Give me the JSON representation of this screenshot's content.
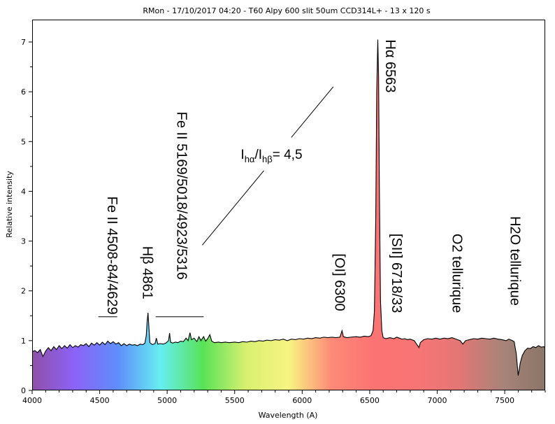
{
  "chart_data": {
    "type": "line",
    "title": "RMon - 17/10/2017 04:20 - T60 Alpy 600 slit 50um CCD314L+ - 13 x 120 s",
    "xlabel": "Wavelength (A)",
    "ylabel": "Relative intensity",
    "xlim": [
      4000,
      7800
    ],
    "ylim": [
      0,
      7.45
    ],
    "x_ticks": [
      4000,
      4500,
      5000,
      5500,
      6000,
      6500,
      7000,
      7500
    ],
    "y_ticks": [
      0,
      1,
      2,
      3,
      4,
      5,
      6,
      7
    ],
    "grid": false,
    "spectrum_gradient": [
      "#8f50a8",
      "#8b63f8",
      "#5f8efb",
      "#66eef2",
      "#58e257",
      "#d8f070",
      "#f8f482",
      "#fd8a78",
      "#fc7373",
      "#f87575",
      "#e37675",
      "#a78479",
      "#8a7568"
    ],
    "line_color": "#000000",
    "series": [
      {
        "name": "spectrum",
        "points": [
          [
            4000,
            0.78
          ],
          [
            4020,
            0.8
          ],
          [
            4040,
            0.76
          ],
          [
            4060,
            0.82
          ],
          [
            4080,
            0.68
          ],
          [
            4100,
            0.79
          ],
          [
            4120,
            0.86
          ],
          [
            4140,
            0.8
          ],
          [
            4160,
            0.88
          ],
          [
            4180,
            0.82
          ],
          [
            4200,
            0.9
          ],
          [
            4220,
            0.84
          ],
          [
            4240,
            0.9
          ],
          [
            4260,
            0.85
          ],
          [
            4280,
            0.92
          ],
          [
            4300,
            0.86
          ],
          [
            4320,
            0.9
          ],
          [
            4340,
            0.87
          ],
          [
            4360,
            0.92
          ],
          [
            4380,
            0.9
          ],
          [
            4400,
            0.94
          ],
          [
            4420,
            0.88
          ],
          [
            4440,
            0.95
          ],
          [
            4460,
            0.91
          ],
          [
            4480,
            0.96
          ],
          [
            4500,
            0.91
          ],
          [
            4520,
            0.97
          ],
          [
            4540,
            0.92
          ],
          [
            4560,
            0.99
          ],
          [
            4580,
            0.94
          ],
          [
            4600,
            0.98
          ],
          [
            4620,
            0.93
          ],
          [
            4640,
            0.96
          ],
          [
            4660,
            0.9
          ],
          [
            4680,
            0.94
          ],
          [
            4700,
            0.9
          ],
          [
            4720,
            0.93
          ],
          [
            4740,
            0.91
          ],
          [
            4760,
            0.92
          ],
          [
            4780,
            0.9
          ],
          [
            4800,
            0.93
          ],
          [
            4820,
            0.92
          ],
          [
            4835,
            0.95
          ],
          [
            4845,
            1.1
          ],
          [
            4852,
            1.4
          ],
          [
            4858,
            1.56
          ],
          [
            4864,
            1.3
          ],
          [
            4872,
            0.96
          ],
          [
            4890,
            0.92
          ],
          [
            4910,
            0.94
          ],
          [
            4920,
            1.05
          ],
          [
            4930,
            0.93
          ],
          [
            4950,
            0.94
          ],
          [
            4970,
            0.93
          ],
          [
            4990,
            0.95
          ],
          [
            5010,
            1.0
          ],
          [
            5018,
            1.15
          ],
          [
            5025,
            0.97
          ],
          [
            5040,
            0.95
          ],
          [
            5060,
            0.97
          ],
          [
            5080,
            0.96
          ],
          [
            5100,
            0.99
          ],
          [
            5120,
            0.98
          ],
          [
            5140,
            1.05
          ],
          [
            5155,
            1.0
          ],
          [
            5169,
            1.16
          ],
          [
            5180,
            1.02
          ],
          [
            5200,
            1.05
          ],
          [
            5220,
            0.98
          ],
          [
            5235,
            1.08
          ],
          [
            5250,
            1.0
          ],
          [
            5270,
            1.08
          ],
          [
            5285,
            0.99
          ],
          [
            5300,
            1.04
          ],
          [
            5316,
            1.12
          ],
          [
            5330,
            0.99
          ],
          [
            5350,
            0.96
          ],
          [
            5380,
            0.97
          ],
          [
            5400,
            0.96
          ],
          [
            5430,
            0.97
          ],
          [
            5460,
            0.96
          ],
          [
            5500,
            0.97
          ],
          [
            5530,
            0.96
          ],
          [
            5560,
            0.98
          ],
          [
            5590,
            0.97
          ],
          [
            5620,
            0.99
          ],
          [
            5650,
            0.98
          ],
          [
            5680,
            1.0
          ],
          [
            5710,
            0.99
          ],
          [
            5740,
            1.01
          ],
          [
            5770,
            1.0
          ],
          [
            5800,
            1.02
          ],
          [
            5830,
            1.01
          ],
          [
            5860,
            1.03
          ],
          [
            5890,
            1.0
          ],
          [
            5920,
            1.03
          ],
          [
            5950,
            1.02
          ],
          [
            5980,
            1.04
          ],
          [
            6010,
            1.03
          ],
          [
            6040,
            1.05
          ],
          [
            6070,
            1.04
          ],
          [
            6100,
            1.06
          ],
          [
            6130,
            1.05
          ],
          [
            6160,
            1.07
          ],
          [
            6190,
            1.06
          ],
          [
            6220,
            1.07
          ],
          [
            6250,
            1.06
          ],
          [
            6280,
            1.07
          ],
          [
            6295,
            1.2
          ],
          [
            6305,
            1.08
          ],
          [
            6330,
            1.06
          ],
          [
            6360,
            1.07
          ],
          [
            6400,
            1.08
          ],
          [
            6430,
            1.07
          ],
          [
            6460,
            1.09
          ],
          [
            6490,
            1.08
          ],
          [
            6510,
            1.1
          ],
          [
            6525,
            1.2
          ],
          [
            6535,
            1.6
          ],
          [
            6545,
            3.5
          ],
          [
            6552,
            6.0
          ],
          [
            6560,
            7.05
          ],
          [
            6566,
            6.3
          ],
          [
            6572,
            4.0
          ],
          [
            6580,
            1.8
          ],
          [
            6590,
            1.2
          ],
          [
            6600,
            1.06
          ],
          [
            6620,
            1.04
          ],
          [
            6650,
            1.06
          ],
          [
            6680,
            1.04
          ],
          [
            6700,
            1.07
          ],
          [
            6720,
            1.05
          ],
          [
            6740,
            1.03
          ],
          [
            6760,
            1.04
          ],
          [
            6780,
            1.02
          ],
          [
            6800,
            1.03
          ],
          [
            6830,
            1.0
          ],
          [
            6850,
            0.92
          ],
          [
            6865,
            0.86
          ],
          [
            6875,
            0.96
          ],
          [
            6900,
            1.02
          ],
          [
            6930,
            1.04
          ],
          [
            6960,
            1.03
          ],
          [
            6990,
            1.05
          ],
          [
            7020,
            1.03
          ],
          [
            7050,
            1.05
          ],
          [
            7080,
            1.04
          ],
          [
            7110,
            1.06
          ],
          [
            7140,
            1.03
          ],
          [
            7170,
            1.0
          ],
          [
            7190,
            0.93
          ],
          [
            7210,
            1.0
          ],
          [
            7240,
            1.02
          ],
          [
            7270,
            1.04
          ],
          [
            7300,
            1.03
          ],
          [
            7330,
            1.05
          ],
          [
            7360,
            1.04
          ],
          [
            7390,
            1.03
          ],
          [
            7420,
            1.05
          ],
          [
            7450,
            1.03
          ],
          [
            7480,
            1.02
          ],
          [
            7510,
            1.0
          ],
          [
            7530,
            1.03
          ],
          [
            7550,
            1.01
          ],
          [
            7570,
            0.98
          ],
          [
            7585,
            0.75
          ],
          [
            7600,
            0.3
          ],
          [
            7615,
            0.55
          ],
          [
            7630,
            0.7
          ],
          [
            7650,
            0.8
          ],
          [
            7670,
            0.85
          ],
          [
            7690,
            0.84
          ],
          [
            7710,
            0.88
          ],
          [
            7730,
            0.86
          ],
          [
            7750,
            0.9
          ],
          [
            7770,
            0.87
          ],
          [
            7790,
            0.88
          ],
          [
            7800,
            0.86
          ]
        ]
      }
    ],
    "annotations": [
      {
        "text": "Fe II 4508-84/4629",
        "x": 4560,
        "y": 3.9,
        "rotation": 90
      },
      {
        "text": "Hβ 4861",
        "x": 4820,
        "y": 2.9,
        "rotation": 90
      },
      {
        "text": "Fe II 5169/5018/4923/5316",
        "x": 5075,
        "y": 5.6,
        "rotation": 90
      },
      {
        "text": "[OI] 6300",
        "x": 6245,
        "y": 2.75,
        "rotation": 90
      },
      {
        "text": "Hα 6563",
        "x": 6620,
        "y": 7.05,
        "rotation": 90
      },
      {
        "text": "[SII] 6718/33",
        "x": 6665,
        "y": 3.15,
        "rotation": 90
      },
      {
        "text": "O2 tellurique",
        "x": 7115,
        "y": 3.15,
        "rotation": 90
      },
      {
        "text": "H2O tellurique",
        "x": 7545,
        "y": 3.5,
        "rotation": 90
      }
    ],
    "bracket_lines": [
      {
        "x1": 4490,
        "x2": 4630,
        "y": 1.48
      },
      {
        "x1": 4915,
        "x2": 5270,
        "y": 1.48
      }
    ],
    "ratio_annotation": {
      "main": "I",
      "sub1": "hα",
      "slash": "/I",
      "sub2": "hβ",
      "value": "= 4,5",
      "line": {
        "x1": 5260,
        "y1": 2.92,
        "x2": 6230,
        "y2": 6.1
      }
    }
  }
}
